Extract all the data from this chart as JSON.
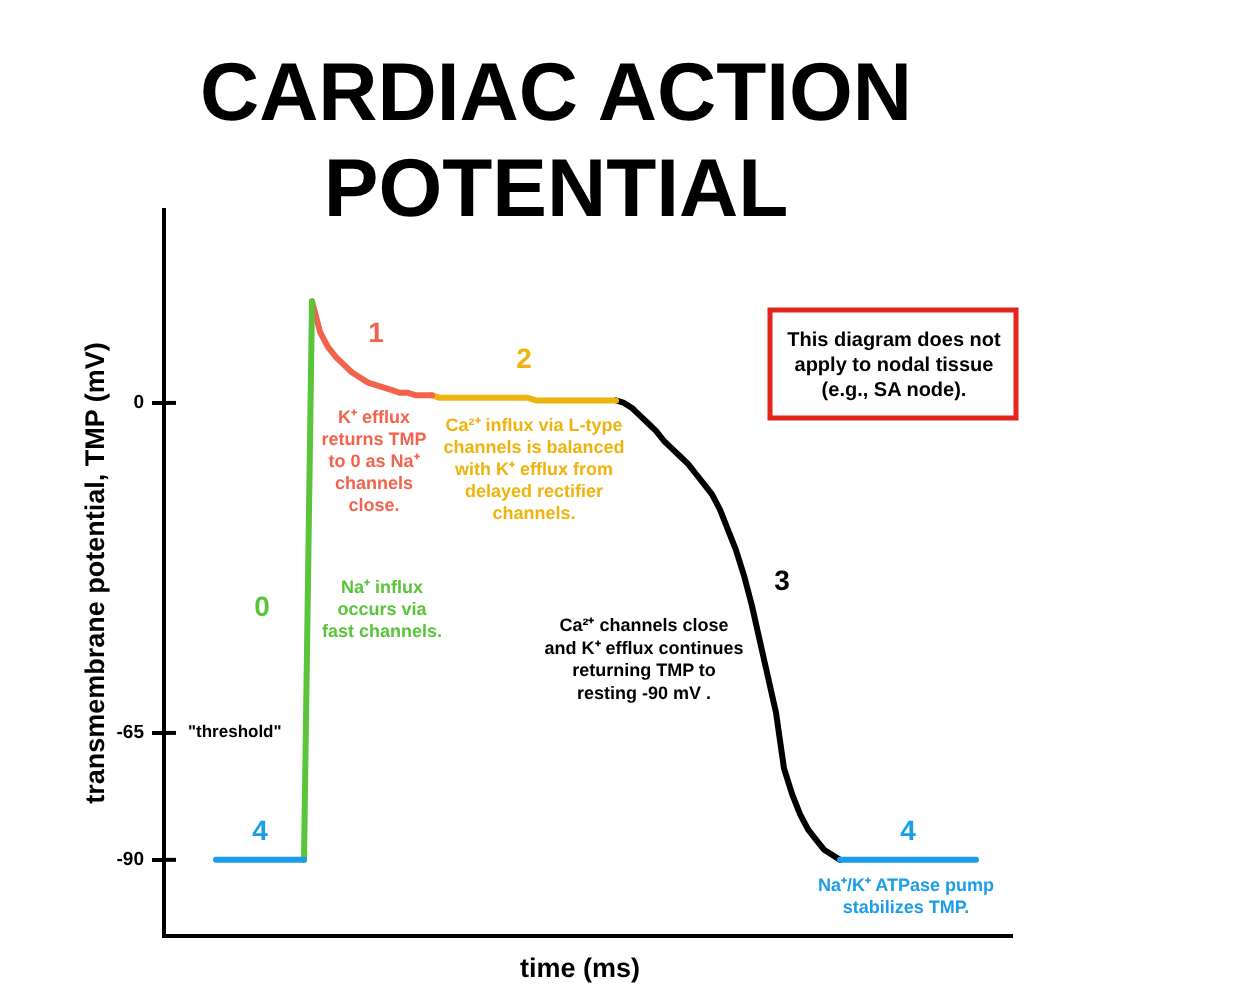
{
  "chart_data": {
    "type": "line",
    "title": "CARDIAC ACTION POTENTIAL",
    "xlabel": "time (ms)",
    "ylabel": "transmembrane potential, TMP (mV)",
    "categories": [
      null,
      null,
      null,
      null,
      null,
      null,
      null,
      null,
      null,
      null,
      null,
      null,
      null,
      null,
      null,
      null,
      null,
      null,
      null,
      null,
      null,
      null,
      null,
      null,
      null,
      null,
      null,
      null,
      null,
      null,
      null,
      null,
      null,
      null,
      null,
      null,
      null,
      null,
      null,
      null,
      null,
      null,
      null,
      null,
      null,
      null,
      null,
      null,
      null,
      null,
      null,
      null,
      null,
      null,
      null,
      null,
      null,
      null,
      null,
      null,
      null,
      null,
      null,
      null,
      null,
      null,
      null,
      null,
      null,
      null,
      null,
      null,
      null,
      null,
      null,
      null,
      null,
      null,
      null,
      null,
      null,
      null,
      null,
      null,
      null,
      null,
      null,
      null,
      null,
      null,
      null,
      null,
      null,
      null,
      null,
      null,
      null,
      null,
      null,
      null,
      null,
      null,
      null,
      null,
      null,
      null
    ],
    "ylim": [
      -105,
      38
    ],
    "yticks": [
      -90,
      -65,
      0
    ],
    "tick_labels": "y",
    "marker": "none",
    "line_style": "solid",
    "series": [
      {
        "name": "4",
        "color": "#1b9de8",
        "values": [
          null,
          null,
          null,
          null,
          null,
          null,
          -90,
          -90,
          -90,
          -90,
          -90,
          -90,
          -90,
          -90,
          -90,
          -90,
          -90,
          -90,
          null,
          null,
          null,
          null,
          null,
          null,
          null,
          null,
          null,
          null,
          null,
          null,
          null,
          null,
          null,
          null,
          null,
          null,
          null,
          null,
          null,
          null,
          null,
          null,
          null,
          null,
          null,
          null,
          null,
          null,
          null,
          null,
          null,
          null,
          null,
          null,
          null,
          null,
          null,
          null,
          null,
          null,
          null,
          null,
          null,
          null,
          null,
          null,
          null,
          null,
          null,
          null,
          null,
          null,
          null,
          null,
          null,
          null,
          null,
          null,
          null,
          null,
          null,
          null,
          null,
          null,
          -90,
          -90,
          -90,
          -90,
          -90,
          -90,
          -90,
          -90,
          -90,
          -90,
          -90,
          -90,
          -90,
          -90,
          -90,
          -90,
          -90,
          -90,
          null,
          null,
          null,
          null
        ]
      },
      {
        "name": "0",
        "color": "#5ac43a",
        "values": [
          null,
          null,
          null,
          null,
          null,
          null,
          null,
          null,
          null,
          null,
          null,
          null,
          null,
          null,
          null,
          null,
          null,
          -90,
          20,
          null,
          null,
          null,
          null,
          null,
          null,
          null,
          null,
          null,
          null,
          null,
          null,
          null,
          null,
          null,
          null,
          null,
          null,
          null,
          null,
          null,
          null,
          null,
          null,
          null,
          null,
          null,
          null,
          null,
          null,
          null,
          null,
          null,
          null,
          null,
          null,
          null,
          null,
          null,
          null,
          null,
          null,
          null,
          null,
          null,
          null,
          null,
          null,
          null,
          null,
          null,
          null,
          null,
          null,
          null,
          null,
          null,
          null,
          null,
          null,
          null,
          null,
          null,
          null,
          null,
          null,
          null,
          null,
          null,
          null,
          null,
          null,
          null,
          null,
          null,
          null,
          null,
          null,
          null,
          null,
          null,
          null,
          null,
          null,
          null,
          null,
          null
        ]
      },
      {
        "name": "1",
        "color": "#f2634e",
        "values": [
          null,
          null,
          null,
          null,
          null,
          null,
          null,
          null,
          null,
          null,
          null,
          null,
          null,
          null,
          null,
          null,
          null,
          null,
          20,
          14,
          11,
          9,
          7.5,
          6,
          5,
          4,
          3.5,
          3,
          2.5,
          2,
          2,
          1.5,
          1.5,
          1.5,
          null,
          null,
          null,
          null,
          null,
          null,
          null,
          null,
          null,
          null,
          null,
          null,
          null,
          null,
          null,
          null,
          null,
          null,
          null,
          null,
          null,
          null,
          null,
          null,
          null,
          null,
          null,
          null,
          null,
          null,
          null,
          null,
          null,
          null,
          null,
          null,
          null,
          null,
          null,
          null,
          null,
          null,
          null,
          null,
          null,
          null,
          null,
          null,
          null,
          null,
          null,
          null,
          null,
          null,
          null,
          null,
          null,
          null,
          null,
          null,
          null,
          null,
          null,
          null,
          null,
          null,
          null,
          null,
          null,
          null,
          null,
          null
        ]
      },
      {
        "name": "2",
        "color": "#efb30e",
        "values": [
          null,
          null,
          null,
          null,
          null,
          null,
          null,
          null,
          null,
          null,
          null,
          null,
          null,
          null,
          null,
          null,
          null,
          null,
          null,
          null,
          null,
          null,
          null,
          null,
          null,
          null,
          null,
          null,
          null,
          null,
          null,
          null,
          null,
          1.5,
          1,
          1,
          1,
          1,
          1,
          1,
          1,
          1,
          1,
          1,
          1,
          1,
          0.5,
          0.5,
          0.5,
          0.5,
          0.5,
          0.5,
          0.5,
          0.5,
          0.5,
          0.5,
          0.5,
          null,
          null,
          null,
          null,
          null,
          null,
          null,
          null,
          null,
          null,
          null,
          null,
          null,
          null,
          null,
          null,
          null,
          null,
          null,
          null,
          null,
          null,
          null,
          null,
          null,
          null,
          null,
          null,
          null,
          null,
          null,
          null,
          null,
          null,
          null,
          null,
          null,
          null,
          null,
          null,
          null,
          null,
          null,
          null,
          null,
          null,
          null,
          null,
          null
        ]
      },
      {
        "name": "3",
        "color": "#000000",
        "values": [
          null,
          null,
          null,
          null,
          null,
          null,
          null,
          null,
          null,
          null,
          null,
          null,
          null,
          null,
          null,
          null,
          null,
          null,
          null,
          null,
          null,
          null,
          null,
          null,
          null,
          null,
          null,
          null,
          null,
          null,
          null,
          null,
          null,
          null,
          null,
          null,
          null,
          null,
          null,
          null,
          null,
          null,
          null,
          null,
          null,
          null,
          null,
          null,
          null,
          null,
          null,
          null,
          null,
          null,
          null,
          null,
          0.5,
          0,
          -1,
          -2.5,
          -4,
          -5.5,
          -7.5,
          -9,
          -10.5,
          -12,
          -14,
          -16,
          -18,
          -21,
          -25,
          -29,
          -34,
          -40,
          -47,
          -54,
          -61,
          -72,
          -77,
          -81,
          -84,
          -86,
          -88,
          -89,
          -90,
          null,
          null,
          null,
          null,
          null,
          null,
          null,
          null,
          null,
          null,
          null,
          null,
          null,
          null,
          null,
          null,
          null,
          null,
          null,
          null,
          null
        ]
      }
    ],
    "annotations": [
      "\"threshold\"",
      "K⁺ efflux\nreturns TMP\nto 0 as Na⁺\nchannels\nclose.",
      "Ca²⁺ influx via L-type\nchannels is balanced\nwith K⁺ efflux from\ndelayed rectifier\nchannels.",
      "Na⁺ influx\noccurs via\nfast channels.",
      "Ca²⁺ channels close\nand K⁺ efflux continues\nreturning TMP to\nresting -90 mV .",
      "Na⁺/K⁺ ATPase pump\nstabilizes TMP.",
      "This diagram does not\napply to nodal tissue\n(e.g., SA node)."
    ]
  }
}
